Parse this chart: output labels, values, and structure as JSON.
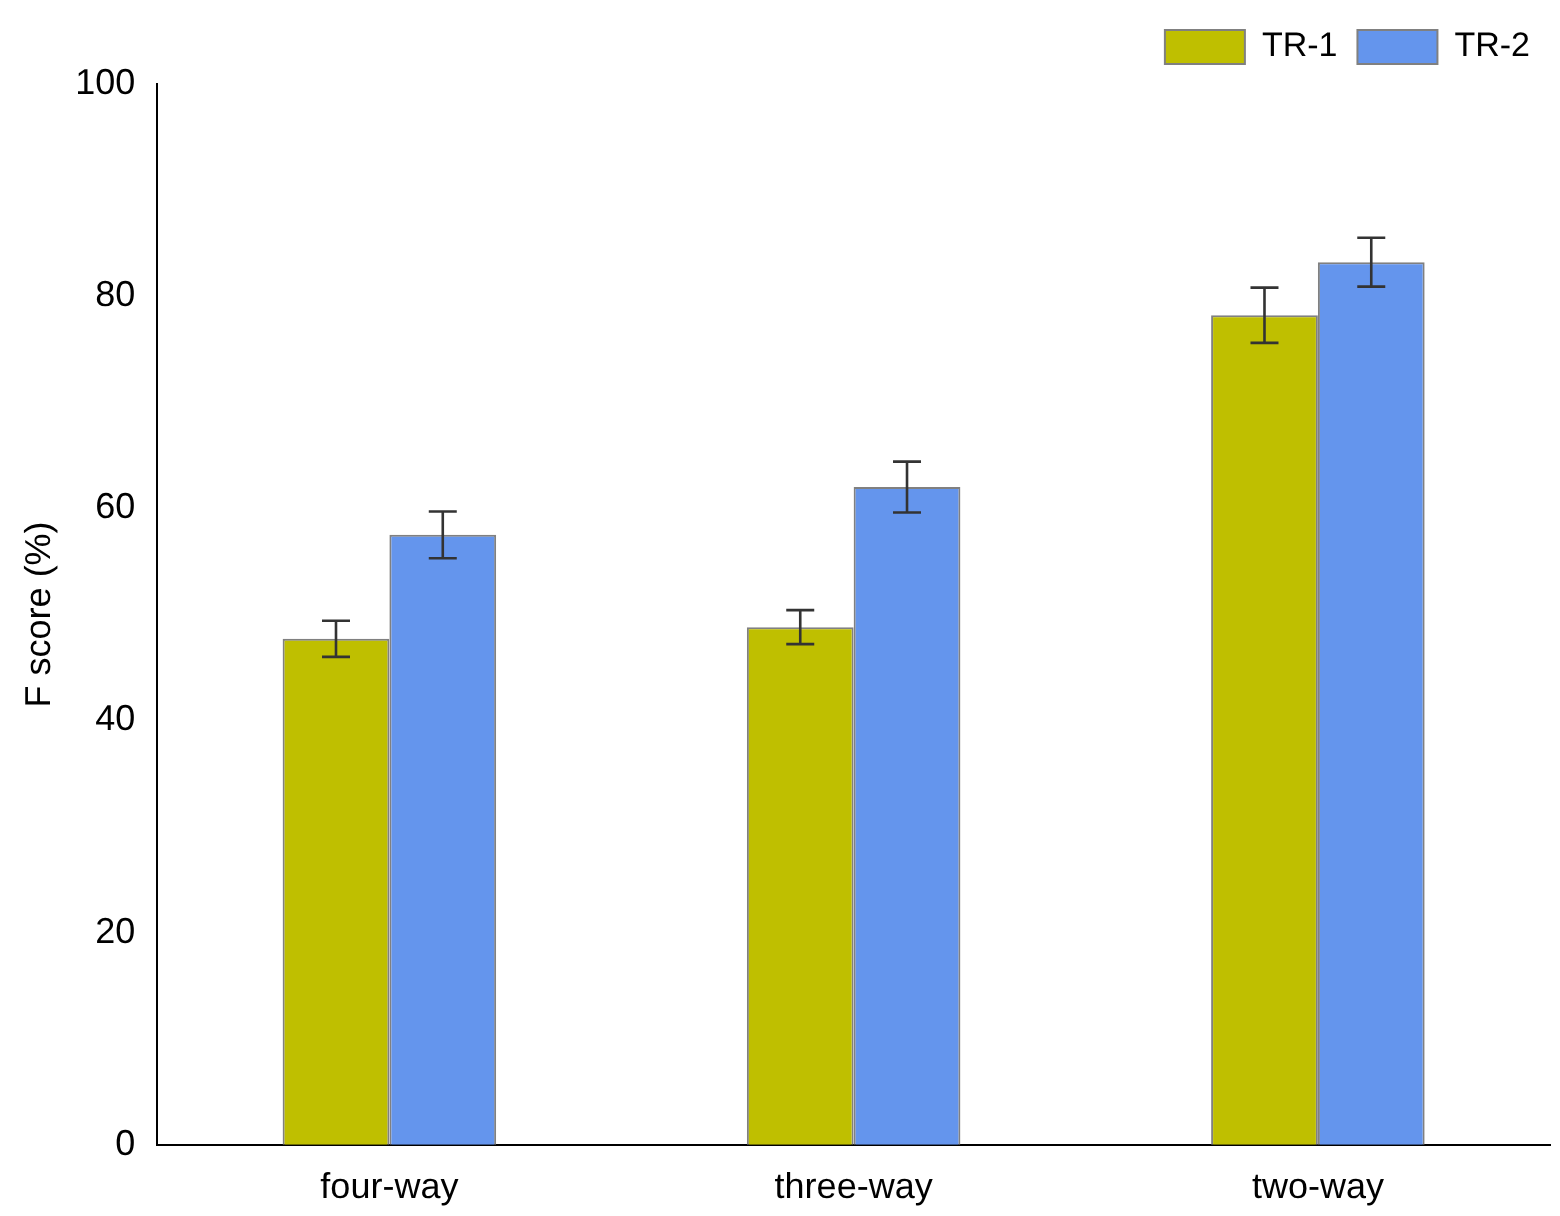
{
  "chart_data": {
    "type": "bar",
    "ylabel": "F score (%)",
    "categories": [
      "four-way",
      "three-way",
      "two-way"
    ],
    "series": [
      {
        "name": "TR-1",
        "color": "#bfbf00",
        "values": [
          47.7,
          48.8,
          78.2
        ],
        "errors": [
          1.7,
          1.6,
          2.6
        ]
      },
      {
        "name": "TR-2",
        "color": "#6495ed",
        "values": [
          57.5,
          62,
          83.2
        ],
        "errors": [
          2.2,
          2.4,
          2.3
        ]
      }
    ],
    "ylim": [
      0,
      100
    ],
    "yticks": [
      0,
      20,
      40,
      60,
      80,
      100
    ],
    "grid": false,
    "legend": "top right"
  }
}
